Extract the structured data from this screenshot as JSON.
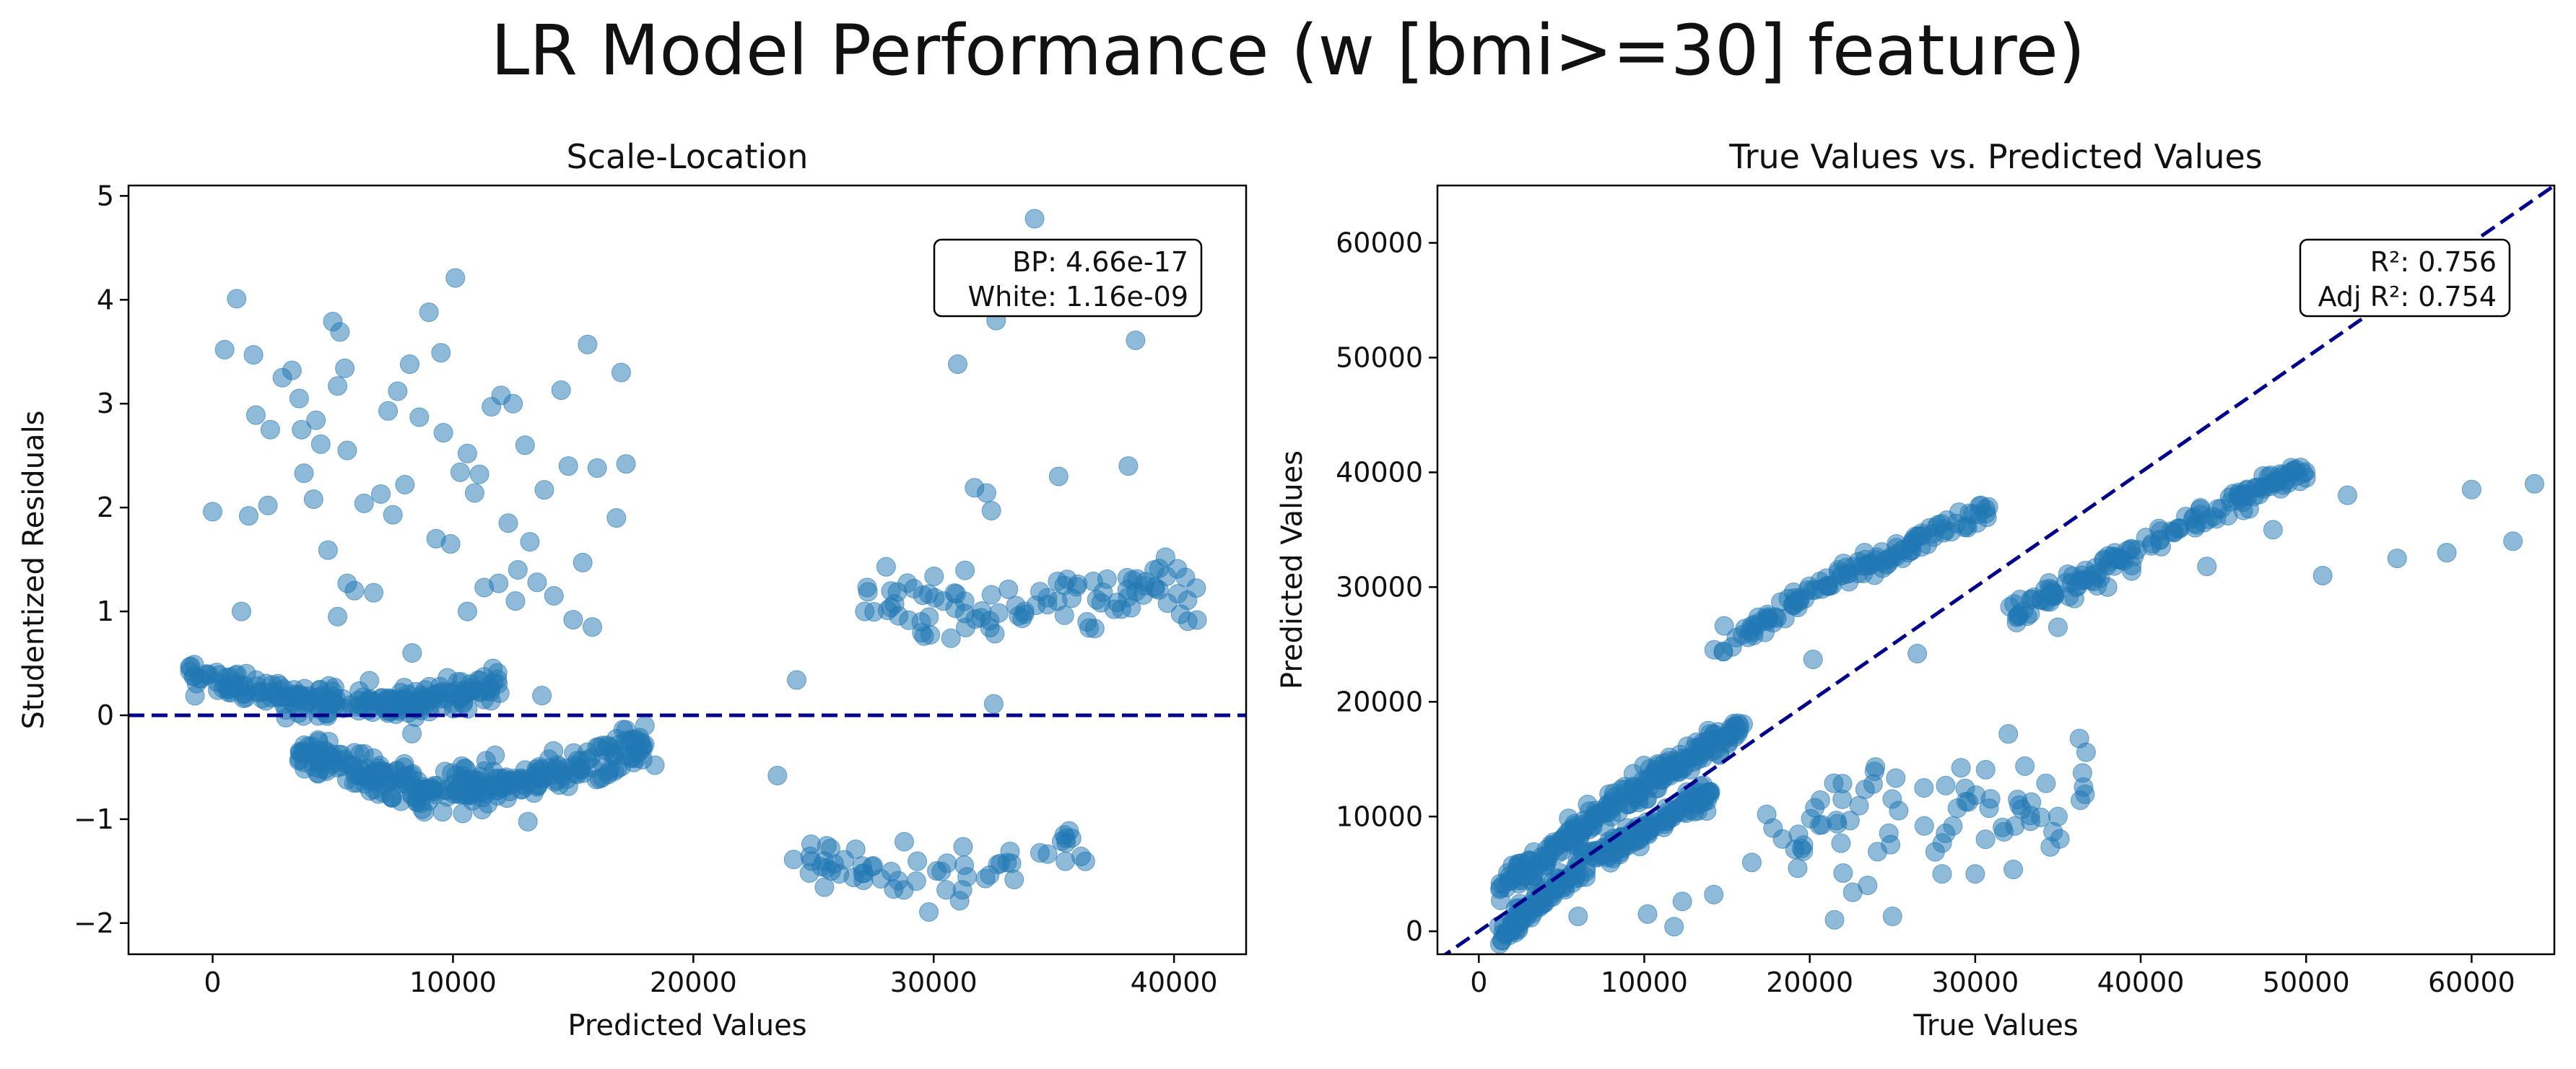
{
  "suptitle": "LR Model Performance (w [bmi>=30] feature)",
  "chart_data": [
    {
      "type": "scatter",
      "title": "Scale-Location",
      "xlabel": "Predicted Values",
      "ylabel": "Studentized Residuals",
      "xlim": [
        -3500,
        43000
      ],
      "ylim": [
        -2.3,
        5.1
      ],
      "xticks": [
        0,
        10000,
        20000,
        30000,
        40000
      ],
      "xtick_labels": [
        "0",
        "10000",
        "20000",
        "30000",
        "40000"
      ],
      "yticks": [
        -2,
        -1,
        0,
        1,
        2,
        3,
        4,
        5
      ],
      "ytick_labels": [
        "−2",
        "−1",
        "0",
        "1",
        "2",
        "3",
        "4",
        "5"
      ],
      "reference_line": {
        "orientation": "horizontal",
        "y": 0,
        "style": "dashed",
        "color": "#00008b"
      },
      "annotation": {
        "lines": [
          "BP: 4.66e-17",
          "White: 1.16e-09"
        ],
        "placement": "top-right"
      },
      "point_color": "#1f77b4",
      "point_alpha": 0.5,
      "clusters": [
        {
          "n": 230,
          "x_range": [
            -1000,
            12000
          ],
          "curve": [
            [
              -1000,
              0.4
            ],
            [
              4000,
              0.15
            ],
            [
              8000,
              0.1
            ],
            [
              12000,
              0.3
            ]
          ],
          "spread": 0.12
        },
        {
          "n": 300,
          "x_range": [
            3500,
            18000
          ],
          "curve": [
            [
              3500,
              -0.35
            ],
            [
              9000,
              -0.72
            ],
            [
              14000,
              -0.6
            ],
            [
              18000,
              -0.3
            ]
          ],
          "spread": 0.16
        },
        {
          "n": 60,
          "x_range": [
            24000,
            36500
          ],
          "curve": [
            [
              24000,
              -1.35
            ],
            [
              30000,
              -1.6
            ],
            [
              36500,
              -1.2
            ]
          ],
          "spread": 0.2
        },
        {
          "n": 95,
          "x_range": [
            27000,
            41000
          ],
          "curve": [
            [
              27000,
              1.1
            ],
            [
              33000,
              1.0
            ],
            [
              41000,
              1.3
            ]
          ],
          "spread": 0.3
        }
      ],
      "points": [
        [
          0,
          1.96
        ],
        [
          500,
          3.52
        ],
        [
          1000,
          4.01
        ],
        [
          1200,
          1.0
        ],
        [
          1500,
          1.92
        ],
        [
          1700,
          3.47
        ],
        [
          1800,
          2.89
        ],
        [
          2300,
          2.02
        ],
        [
          2400,
          2.75
        ],
        [
          2900,
          3.25
        ],
        [
          3300,
          3.32
        ],
        [
          3600,
          3.05
        ],
        [
          3700,
          2.75
        ],
        [
          3800,
          2.33
        ],
        [
          4200,
          2.08
        ],
        [
          4300,
          2.84
        ],
        [
          4500,
          2.61
        ],
        [
          4800,
          1.59
        ],
        [
          5000,
          3.79
        ],
        [
          5200,
          3.17
        ],
        [
          5300,
          3.69
        ],
        [
          5500,
          3.34
        ],
        [
          5600,
          2.55
        ],
        [
          5900,
          1.2
        ],
        [
          6300,
          2.04
        ],
        [
          6700,
          1.18
        ],
        [
          7000,
          2.13
        ],
        [
          7300,
          2.93
        ],
        [
          7500,
          1.93
        ],
        [
          7700,
          3.12
        ],
        [
          8000,
          2.22
        ],
        [
          8200,
          3.38
        ],
        [
          8600,
          2.87
        ],
        [
          9000,
          3.88
        ],
        [
          9300,
          1.7
        ],
        [
          9500,
          3.49
        ],
        [
          9600,
          2.72
        ],
        [
          9900,
          1.65
        ],
        [
          10100,
          4.21
        ],
        [
          10300,
          2.34
        ],
        [
          10600,
          2.52
        ],
        [
          10900,
          2.14
        ],
        [
          11100,
          2.32
        ],
        [
          11300,
          1.23
        ],
        [
          11600,
          2.97
        ],
        [
          11900,
          1.27
        ],
        [
          12000,
          3.08
        ],
        [
          12300,
          1.85
        ],
        [
          12500,
          3.0
        ],
        [
          12700,
          1.4
        ],
        [
          13000,
          2.6
        ],
        [
          13200,
          1.67
        ],
        [
          13500,
          1.28
        ],
        [
          13800,
          2.17
        ],
        [
          14200,
          1.15
        ],
        [
          14500,
          3.13
        ],
        [
          14800,
          2.4
        ],
        [
          15000,
          0.92
        ],
        [
          15400,
          1.47
        ],
        [
          15600,
          3.57
        ],
        [
          15800,
          0.85
        ],
        [
          16000,
          2.38
        ],
        [
          16800,
          1.9
        ],
        [
          17000,
          3.3
        ],
        [
          17200,
          2.42
        ],
        [
          8300,
          0.6
        ],
        [
          5200,
          0.95
        ],
        [
          5600,
          1.27
        ],
        [
          10600,
          1.0
        ],
        [
          12600,
          1.1
        ],
        [
          31000,
          3.38
        ],
        [
          31700,
          2.19
        ],
        [
          32200,
          2.14
        ],
        [
          32400,
          1.97
        ],
        [
          32600,
          3.8
        ],
        [
          34200,
          4.78
        ],
        [
          35200,
          2.3
        ],
        [
          38100,
          2.4
        ],
        [
          38400,
          3.61
        ],
        [
          32500,
          0.11
        ],
        [
          24300,
          0.34
        ],
        [
          23500,
          -0.58
        ],
        [
          13700,
          0.19
        ],
        [
          18400,
          -0.48
        ],
        [
          17600,
          -0.35
        ],
        [
          17200,
          -0.14
        ]
      ]
    },
    {
      "type": "scatter",
      "title": "True Values vs. Predicted Values",
      "xlabel": "True Values",
      "ylabel": "Predicted Values",
      "xlim": [
        -2500,
        65000
      ],
      "ylim": [
        -2000,
        65000
      ],
      "xticks": [
        0,
        10000,
        20000,
        30000,
        40000,
        50000,
        60000
      ],
      "xtick_labels": [
        "0",
        "10000",
        "20000",
        "30000",
        "40000",
        "50000",
        "60000"
      ],
      "yticks": [
        0,
        10000,
        20000,
        30000,
        40000,
        50000,
        60000
      ],
      "ytick_labels": [
        "0",
        "10000",
        "20000",
        "30000",
        "40000",
        "50000",
        "60000"
      ],
      "reference_line": {
        "orientation": "diagonal",
        "from": [
          -2500,
          -2500
        ],
        "to": [
          65000,
          65000
        ],
        "style": "dashed",
        "color": "#00008b"
      },
      "annotation": {
        "lines": [
          "R²: 0.756",
          "Adj R²: 0.754"
        ],
        "placement": "top-right"
      },
      "point_color": "#1f77b4",
      "point_alpha": 0.5,
      "clusters": [
        {
          "n": 260,
          "x_range": [
            1200,
            16000
          ],
          "curve": [
            [
              1200,
              3500
            ],
            [
              8000,
              11000
            ],
            [
              16000,
              18000
            ]
          ],
          "spread": 900
        },
        {
          "n": 220,
          "x_range": [
            1200,
            14500
          ],
          "curve": [
            [
              1200,
              -500
            ],
            [
              6000,
              5500
            ],
            [
              14500,
              12500
            ]
          ],
          "spread": 900
        },
        {
          "n": 130,
          "x_range": [
            14000,
            31000
          ],
          "curve": [
            [
              14000,
              24000
            ],
            [
              20000,
              29500
            ],
            [
              31000,
              37000
            ]
          ],
          "spread": 900
        },
        {
          "n": 150,
          "x_range": [
            32000,
            50000
          ],
          "curve": [
            [
              32000,
              27500
            ],
            [
              40000,
              33500
            ],
            [
              50000,
              40500
            ]
          ],
          "spread": 900
        },
        {
          "n": 70,
          "x_range": [
            17000,
            37000
          ],
          "curve": [
            [
              17000,
              8000
            ],
            [
              27000,
              11000
            ],
            [
              37000,
              11000
            ]
          ],
          "spread": 3500
        }
      ],
      "points": [
        [
          10200,
          1500
        ],
        [
          11800,
          400
        ],
        [
          12300,
          2600
        ],
        [
          14200,
          3200
        ],
        [
          16500,
          6000
        ],
        [
          23500,
          4000
        ],
        [
          25000,
          1300
        ],
        [
          21500,
          1000
        ],
        [
          22600,
          3400
        ],
        [
          35000,
          10000
        ],
        [
          36300,
          16800
        ],
        [
          36700,
          15600
        ],
        [
          51000,
          31000
        ],
        [
          52500,
          38000
        ],
        [
          55500,
          32500
        ],
        [
          58500,
          33000
        ],
        [
          60000,
          38500
        ],
        [
          62500,
          34000
        ],
        [
          63800,
          39000
        ],
        [
          48000,
          35000
        ],
        [
          44000,
          31800
        ],
        [
          38000,
          30000
        ],
        [
          36000,
          29000
        ],
        [
          35000,
          26500
        ],
        [
          30000,
          5000
        ],
        [
          6000,
          1300
        ],
        [
          20200,
          23700
        ],
        [
          26500,
          24200
        ],
        [
          32000,
          17200
        ],
        [
          28000,
          5000
        ]
      ]
    }
  ]
}
